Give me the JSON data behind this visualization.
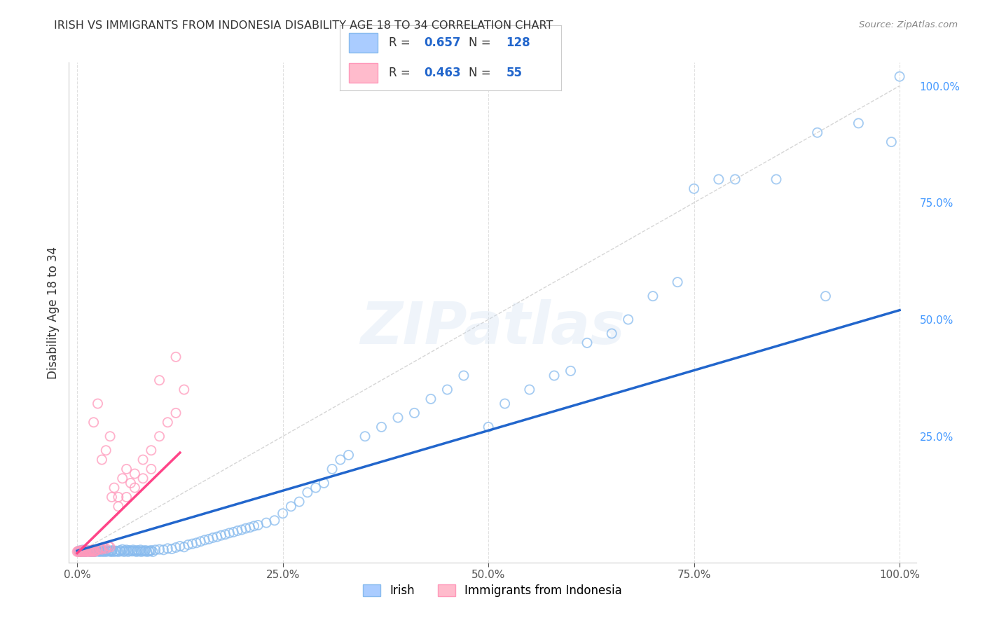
{
  "title": "IRISH VS IMMIGRANTS FROM INDONESIA DISABILITY AGE 18 TO 34 CORRELATION CHART",
  "source": "Source: ZipAtlas.com",
  "ylabel": "Disability Age 18 to 34",
  "x_ticks": [
    0.0,
    0.25,
    0.5,
    0.75,
    1.0
  ],
  "x_tick_labels": [
    "0.0%",
    "25.0%",
    "50.0%",
    "75.0%",
    "100.0%"
  ],
  "y_ticks": [
    0.0,
    0.25,
    0.5,
    0.75,
    1.0
  ],
  "y_tick_labels": [
    "",
    "25.0%",
    "50.0%",
    "75.0%",
    "100.0%"
  ],
  "irish_edge_color": "#88bbee",
  "indonesia_edge_color": "#ff99bb",
  "irish_face_color": "#aaccff",
  "indonesia_face_color": "#ffbbcc",
  "irish_R": "0.657",
  "irish_N": "128",
  "indonesia_R": "0.463",
  "indonesia_N": "55",
  "irish_trend": [
    0.0,
    0.005,
    1.0,
    0.52
  ],
  "indonesia_trend": [
    0.0,
    0.0,
    0.125,
    0.215
  ],
  "watermark": "ZIPatlas",
  "background_color": "#ffffff",
  "grid_color": "#dddddd",
  "ref_line_color": "#cccccc",
  "trendline_blue": "#2266cc",
  "trendline_pink": "#ff4488",
  "legend_value_color": "#2266cc",
  "legend_label_color": "#333333",
  "irish_scatter_x": [
    0.002,
    0.003,
    0.004,
    0.005,
    0.006,
    0.007,
    0.008,
    0.009,
    0.01,
    0.012,
    0.013,
    0.015,
    0.016,
    0.017,
    0.018,
    0.019,
    0.02,
    0.021,
    0.022,
    0.023,
    0.025,
    0.026,
    0.027,
    0.028,
    0.03,
    0.031,
    0.032,
    0.033,
    0.035,
    0.036,
    0.038,
    0.04,
    0.041,
    0.042,
    0.043,
    0.045,
    0.047,
    0.048,
    0.05,
    0.052,
    0.053,
    0.055,
    0.057,
    0.058,
    0.06,
    0.062,
    0.063,
    0.065,
    0.067,
    0.068,
    0.07,
    0.072,
    0.073,
    0.075,
    0.077,
    0.078,
    0.08,
    0.082,
    0.083,
    0.085,
    0.087,
    0.088,
    0.09,
    0.092,
    0.095,
    0.1,
    0.105,
    0.11,
    0.115,
    0.12,
    0.125,
    0.13,
    0.135,
    0.14,
    0.145,
    0.15,
    0.155,
    0.16,
    0.165,
    0.17,
    0.175,
    0.18,
    0.185,
    0.19,
    0.195,
    0.2,
    0.205,
    0.21,
    0.215,
    0.22,
    0.23,
    0.24,
    0.25,
    0.26,
    0.27,
    0.28,
    0.29,
    0.3,
    0.31,
    0.32,
    0.33,
    0.35,
    0.37,
    0.39,
    0.41,
    0.43,
    0.45,
    0.47,
    0.5,
    0.52,
    0.55,
    0.58,
    0.6,
    0.62,
    0.65,
    0.67,
    0.7,
    0.73,
    0.75,
    0.78,
    0.8,
    0.85,
    0.9,
    0.91,
    0.95,
    0.99,
    1.0
  ],
  "irish_scatter_y": [
    0.005,
    0.003,
    0.004,
    0.006,
    0.003,
    0.007,
    0.004,
    0.005,
    0.003,
    0.006,
    0.004,
    0.005,
    0.003,
    0.004,
    0.006,
    0.003,
    0.005,
    0.004,
    0.003,
    0.006,
    0.004,
    0.005,
    0.003,
    0.004,
    0.006,
    0.003,
    0.005,
    0.004,
    0.003,
    0.006,
    0.004,
    0.005,
    0.003,
    0.004,
    0.006,
    0.003,
    0.005,
    0.004,
    0.003,
    0.006,
    0.004,
    0.008,
    0.003,
    0.005,
    0.007,
    0.003,
    0.006,
    0.005,
    0.004,
    0.007,
    0.005,
    0.003,
    0.006,
    0.004,
    0.007,
    0.003,
    0.005,
    0.004,
    0.006,
    0.003,
    0.005,
    0.004,
    0.006,
    0.003,
    0.007,
    0.008,
    0.007,
    0.01,
    0.009,
    0.012,
    0.015,
    0.013,
    0.018,
    0.02,
    0.022,
    0.025,
    0.028,
    0.03,
    0.033,
    0.035,
    0.038,
    0.04,
    0.043,
    0.045,
    0.048,
    0.05,
    0.053,
    0.055,
    0.058,
    0.06,
    0.065,
    0.07,
    0.085,
    0.1,
    0.11,
    0.13,
    0.14,
    0.15,
    0.18,
    0.2,
    0.21,
    0.25,
    0.27,
    0.29,
    0.3,
    0.33,
    0.35,
    0.38,
    0.27,
    0.32,
    0.35,
    0.38,
    0.39,
    0.45,
    0.47,
    0.5,
    0.55,
    0.58,
    0.78,
    0.8,
    0.8,
    0.8,
    0.9,
    0.55,
    0.92,
    0.88,
    1.02
  ],
  "indonesia_scatter_x": [
    0.0,
    0.001,
    0.002,
    0.003,
    0.004,
    0.005,
    0.006,
    0.007,
    0.008,
    0.009,
    0.01,
    0.011,
    0.012,
    0.013,
    0.014,
    0.015,
    0.016,
    0.017,
    0.018,
    0.019,
    0.02,
    0.021,
    0.022,
    0.025,
    0.028,
    0.03,
    0.032,
    0.035,
    0.038,
    0.04,
    0.042,
    0.045,
    0.05,
    0.055,
    0.06,
    0.065,
    0.07,
    0.08,
    0.09,
    0.1,
    0.11,
    0.12,
    0.13,
    0.02,
    0.025,
    0.03,
    0.035,
    0.04,
    0.05,
    0.06,
    0.07,
    0.08,
    0.09,
    0.1,
    0.12
  ],
  "indonesia_scatter_y": [
    0.003,
    0.004,
    0.003,
    0.005,
    0.003,
    0.004,
    0.006,
    0.003,
    0.005,
    0.004,
    0.003,
    0.005,
    0.004,
    0.003,
    0.005,
    0.004,
    0.006,
    0.003,
    0.005,
    0.007,
    0.004,
    0.003,
    0.005,
    0.007,
    0.01,
    0.008,
    0.012,
    0.01,
    0.015,
    0.013,
    0.12,
    0.14,
    0.12,
    0.16,
    0.18,
    0.15,
    0.17,
    0.2,
    0.22,
    0.25,
    0.28,
    0.3,
    0.35,
    0.28,
    0.32,
    0.2,
    0.22,
    0.25,
    0.1,
    0.12,
    0.14,
    0.16,
    0.18,
    0.37,
    0.42
  ]
}
